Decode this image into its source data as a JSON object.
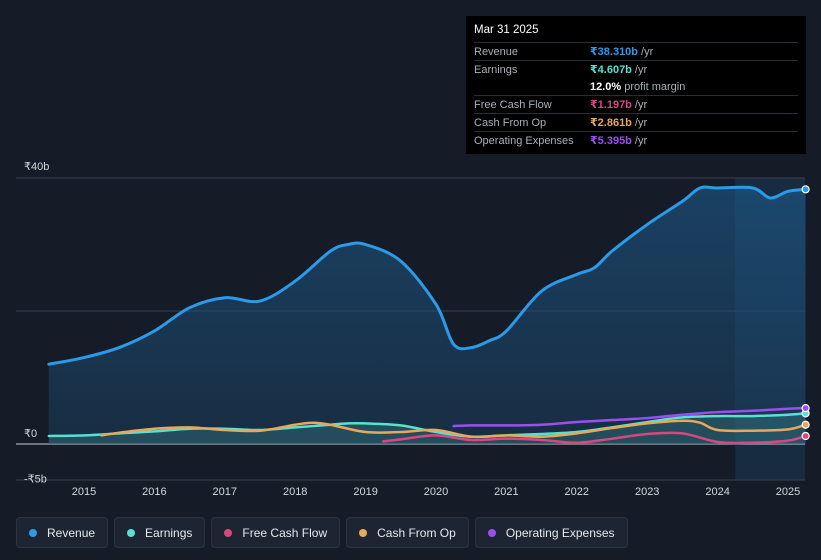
{
  "tooltip": {
    "date": "Mar 31 2025",
    "rows": [
      {
        "label": "Revenue",
        "value": "₹38.310b",
        "unit": "/yr",
        "color": "#2c9ae8"
      },
      {
        "label": "Earnings",
        "value": "₹4.607b",
        "unit": "/yr",
        "color": "#58e0d0"
      },
      {
        "label": "",
        "value": "12.0%",
        "unit": "profit margin",
        "color": "#ffffff"
      },
      {
        "label": "Free Cash Flow",
        "value": "₹1.197b",
        "unit": "/yr",
        "color": "#d9477f"
      },
      {
        "label": "Cash From Op",
        "value": "₹2.861b",
        "unit": "/yr",
        "color": "#e8a85a"
      },
      {
        "label": "Operating Expenses",
        "value": "₹5.395b",
        "unit": "/yr",
        "color": "#9b4ff0"
      }
    ]
  },
  "legend": [
    {
      "label": "Revenue",
      "color": "#2c9ae8"
    },
    {
      "label": "Earnings",
      "color": "#58e0d0"
    },
    {
      "label": "Free Cash Flow",
      "color": "#d9477f"
    },
    {
      "label": "Cash From Op",
      "color": "#e8a85a"
    },
    {
      "label": "Operating Expenses",
      "color": "#9b4ff0"
    }
  ],
  "chart_data": {
    "type": "area",
    "title": "",
    "xlabel": "",
    "ylabel": "",
    "y_tick_labels": [
      "₹40b",
      "₹0",
      "-₹5b"
    ],
    "y_ticks": [
      40,
      0,
      -5
    ],
    "ylim": [
      -5,
      40
    ],
    "xlim": [
      2014.5,
      2025.25
    ],
    "x_ticks": [
      2015,
      2016,
      2017,
      2018,
      2019,
      2020,
      2021,
      2022,
      2023,
      2024,
      2025
    ],
    "x_tick_labels": [
      "2015",
      "2016",
      "2017",
      "2018",
      "2019",
      "2020",
      "2021",
      "2022",
      "2023",
      "2024",
      "2025"
    ],
    "highlight_start": 2024.25,
    "series": [
      {
        "name": "Revenue",
        "color": "#2c9ae8",
        "fill": true,
        "x": [
          2014.5,
          2015.0,
          2015.5,
          2016.0,
          2016.5,
          2017.0,
          2017.5,
          2018.0,
          2018.5,
          2018.75,
          2019.0,
          2019.5,
          2020.0,
          2020.25,
          2020.5,
          2020.75,
          2021.0,
          2021.5,
          2022.0,
          2022.25,
          2022.5,
          2023.0,
          2023.5,
          2023.75,
          2024.0,
          2024.5,
          2024.75,
          2025.0,
          2025.25
        ],
        "values": [
          12,
          13,
          14.5,
          17,
          20.5,
          22,
          21.5,
          24.5,
          29,
          30,
          30,
          27.5,
          21,
          15,
          14.5,
          15.5,
          17,
          23,
          25.5,
          26.5,
          29,
          33,
          36.5,
          38.5,
          38.5,
          38.5,
          37,
          38,
          38.3
        ]
      },
      {
        "name": "Earnings",
        "color": "#58e0d0",
        "fill": true,
        "x": [
          2014.5,
          2015.0,
          2015.5,
          2016.0,
          2016.5,
          2017.0,
          2017.5,
          2018.0,
          2018.5,
          2018.75,
          2019.0,
          2019.5,
          2020.0,
          2020.5,
          2021.0,
          2021.5,
          2022.0,
          2022.5,
          2023.0,
          2023.5,
          2024.0,
          2024.5,
          2025.0,
          2025.25
        ],
        "values": [
          1.2,
          1.3,
          1.6,
          1.9,
          2.3,
          2.3,
          2.1,
          2.5,
          2.9,
          3.1,
          3.1,
          2.8,
          1.8,
          1.1,
          1.3,
          1.5,
          1.8,
          2.5,
          3.3,
          4.0,
          4.2,
          4.2,
          4.4,
          4.6
        ]
      },
      {
        "name": "Free Cash Flow",
        "color": "#d9477f",
        "fill": false,
        "x": [
          2019.25,
          2019.5,
          2020.0,
          2020.5,
          2021.0,
          2021.5,
          2022.0,
          2022.5,
          2023.0,
          2023.5,
          2024.0,
          2024.5,
          2025.0,
          2025.25
        ],
        "values": [
          0.4,
          0.7,
          1.3,
          0.6,
          0.8,
          0.6,
          0.2,
          0.8,
          1.5,
          1.6,
          0.3,
          0.2,
          0.5,
          1.2
        ]
      },
      {
        "name": "Cash From Op",
        "color": "#e8a85a",
        "fill": false,
        "x": [
          2015.25,
          2015.5,
          2016.0,
          2016.5,
          2017.0,
          2017.5,
          2018.0,
          2018.25,
          2018.5,
          2019.0,
          2019.5,
          2020.0,
          2020.5,
          2021.0,
          2021.5,
          2022.0,
          2022.5,
          2023.0,
          2023.5,
          2023.75,
          2024.0,
          2024.5,
          2025.0,
          2025.25
        ],
        "values": [
          1.3,
          1.7,
          2.3,
          2.5,
          2.1,
          2.0,
          2.9,
          3.2,
          2.9,
          1.8,
          1.8,
          2.1,
          1.1,
          1.3,
          1.1,
          1.6,
          2.4,
          3.1,
          3.5,
          3.2,
          2.1,
          2.0,
          2.2,
          2.9
        ]
      },
      {
        "name": "Operating Expenses",
        "color": "#9b4ff0",
        "fill": false,
        "x": [
          2020.25,
          2020.5,
          2021.0,
          2021.5,
          2022.0,
          2022.5,
          2023.0,
          2023.5,
          2024.0,
          2024.5,
          2025.0,
          2025.25
        ],
        "values": [
          2.7,
          2.8,
          2.8,
          2.9,
          3.3,
          3.6,
          3.9,
          4.4,
          4.8,
          5.0,
          5.3,
          5.4
        ]
      }
    ]
  }
}
